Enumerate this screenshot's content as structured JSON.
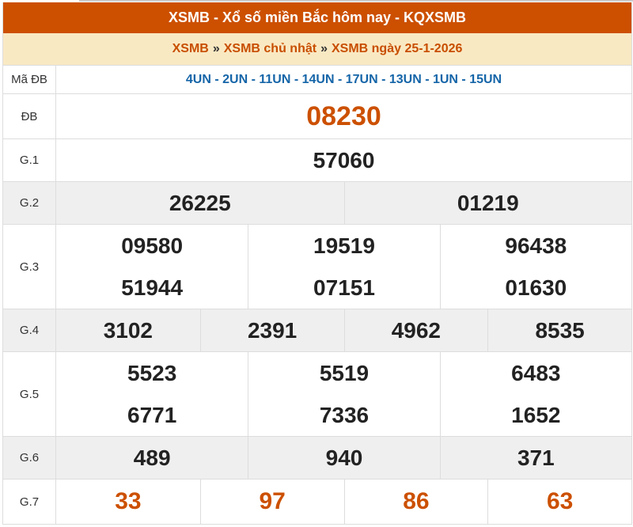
{
  "title": "XSMB - Xổ số miền Bắc hôm nay - KQXSMB",
  "breadcrumb": {
    "items": [
      "XSMB",
      "XSMB chủ nhật",
      "XSMB ngày 25-1-2026"
    ],
    "separator": "»"
  },
  "ma_db": {
    "label": "Mã ĐB",
    "value": "4UN - 2UN - 11UN - 14UN - 17UN - 13UN - 1UN - 15UN"
  },
  "prizes": [
    {
      "label": "ĐB",
      "numbers": [
        "08230"
      ]
    },
    {
      "label": "G.1",
      "numbers": [
        "57060"
      ]
    },
    {
      "label": "G.2",
      "numbers": [
        "26225",
        "01219"
      ]
    },
    {
      "label": "G.3",
      "numbers": [
        "09580",
        "19519",
        "96438",
        "51944",
        "07151",
        "01630"
      ]
    },
    {
      "label": "G.4",
      "numbers": [
        "3102",
        "2391",
        "4962",
        "8535"
      ]
    },
    {
      "label": "G.5",
      "numbers": [
        "5523",
        "5519",
        "6483",
        "6771",
        "7336",
        "1652"
      ]
    },
    {
      "label": "G.6",
      "numbers": [
        "489",
        "940",
        "371"
      ]
    },
    {
      "label": "G.7",
      "numbers": [
        "33",
        "97",
        "86",
        "63"
      ]
    }
  ],
  "colors": {
    "header": "#cc5000",
    "highlight": "#cc5000",
    "code": "#1565a8",
    "grey_row": "#efefef"
  }
}
